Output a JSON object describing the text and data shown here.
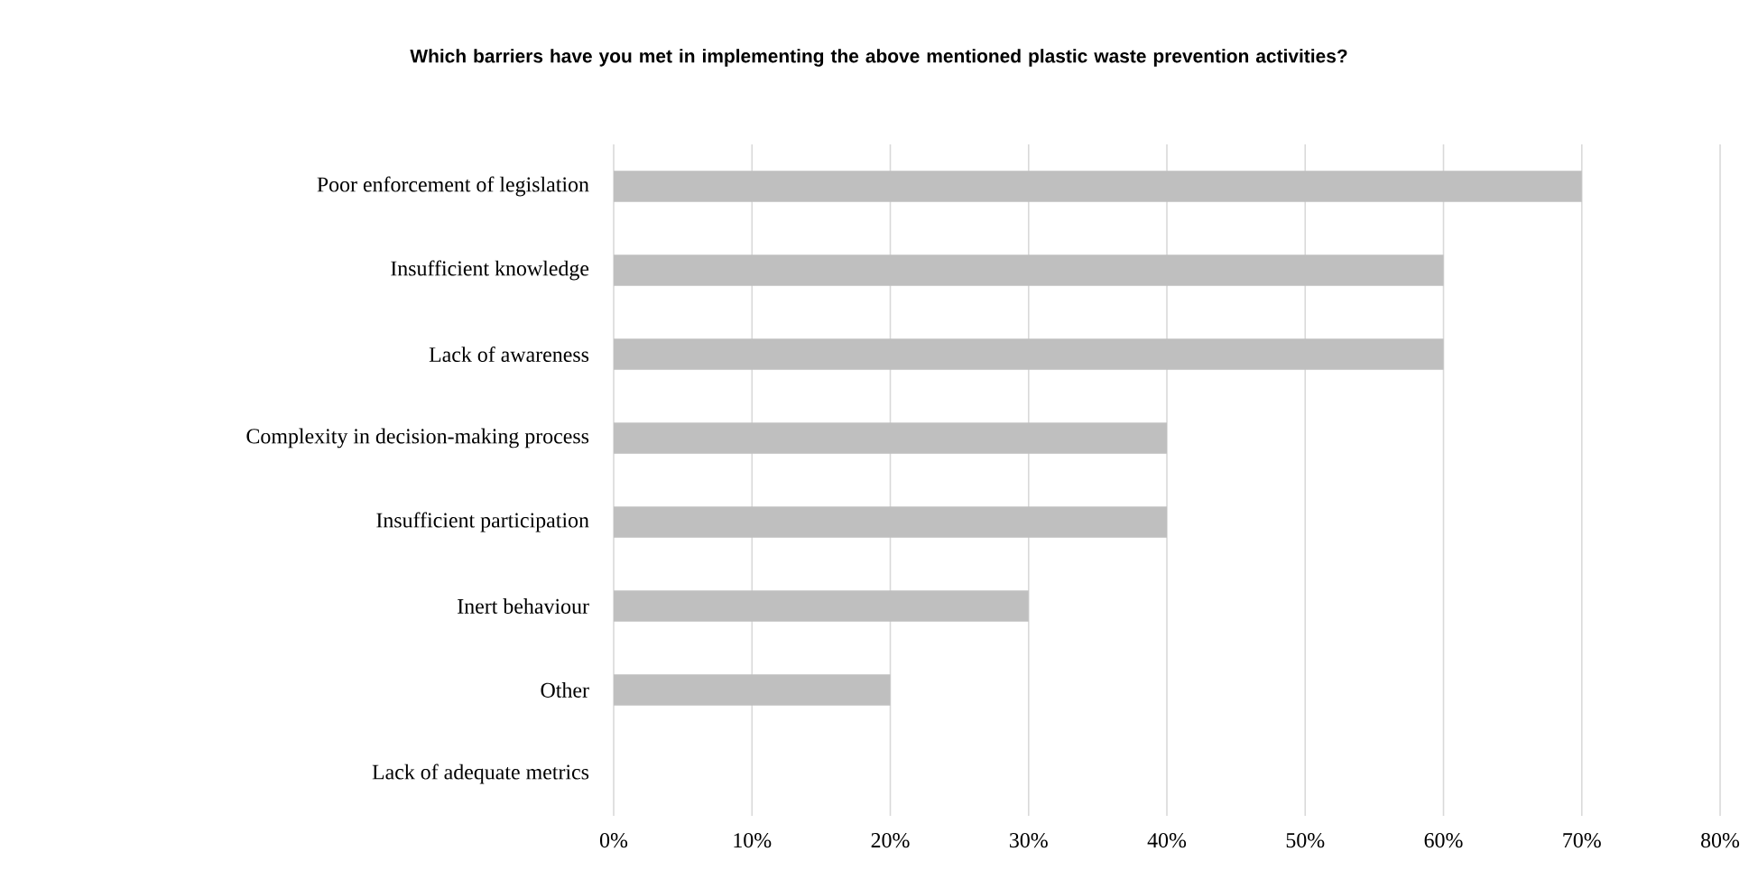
{
  "chart_data": {
    "type": "bar",
    "orientation": "horizontal",
    "title": "Which barriers have you met in implementing the above mentioned plastic waste prevention activities?",
    "categories": [
      "Poor enforcement of legislation",
      "Insufficient knowledge",
      "Lack of awareness",
      "Complexity in decision-making process",
      "Insufficient participation",
      "Inert behaviour",
      "Other",
      "Lack of adequate metrics"
    ],
    "values": [
      70,
      60,
      60,
      40,
      40,
      30,
      20,
      0
    ],
    "color": "#bfbfbf",
    "xlim": [
      0,
      80
    ],
    "xticks": [
      {
        "value": 0,
        "label": "0%"
      },
      {
        "value": 10,
        "label": "10%"
      },
      {
        "value": 20,
        "label": "20%"
      },
      {
        "value": 30,
        "label": "30%"
      },
      {
        "value": 40,
        "label": "40%"
      },
      {
        "value": 50,
        "label": "50%"
      },
      {
        "value": 60,
        "label": "60%"
      },
      {
        "value": 70,
        "label": "70%"
      },
      {
        "value": 80,
        "label": "80%"
      }
    ],
    "grid": "x"
  }
}
